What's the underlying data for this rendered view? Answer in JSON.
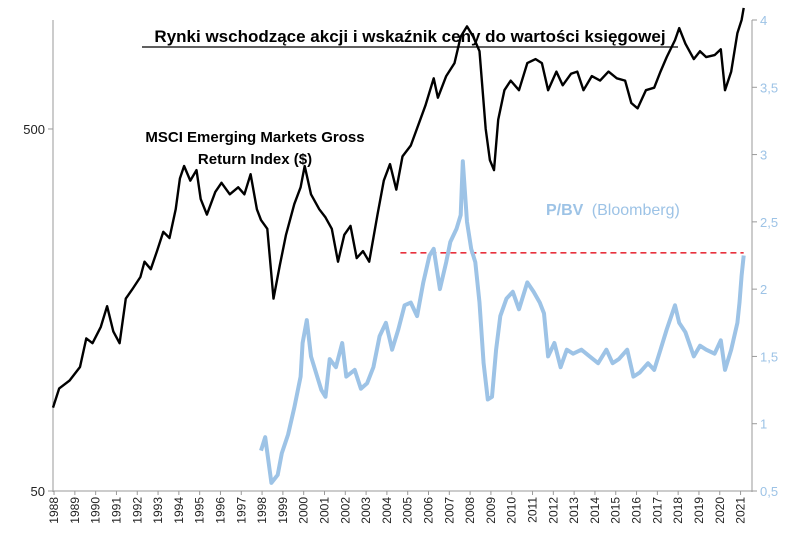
{
  "chart_data": {
    "type": "line",
    "title": "Rynki wschodzące akcji i wskaźnik ceny do wartości księgowej",
    "x_ticks": [
      "1988",
      "1989",
      "1990",
      "1991",
      "1992",
      "1993",
      "1994",
      "1995",
      "1996",
      "1997",
      "1998",
      "1999",
      "2000",
      "2001",
      "2002",
      "2003",
      "2004",
      "2005",
      "2006",
      "2007",
      "2008",
      "2009",
      "2010",
      "2011",
      "2012",
      "2013",
      "2014",
      "2015",
      "2016",
      "2017",
      "2018",
      "2019",
      "2020",
      "2021"
    ],
    "left_axis": {
      "scale": "log",
      "ticks": [
        "50",
        "500"
      ],
      "range": [
        50,
        1000
      ]
    },
    "right_axis": {
      "ticks": [
        "0,5",
        "1",
        "1,5",
        "2",
        "2,5",
        "3",
        "3,5",
        "4"
      ],
      "range": [
        0.5,
        4
      ]
    },
    "series": [
      {
        "name": "MSCI Emerging Markets Gross Return Index ($)",
        "label_line1": "MSCI Emerging Markets Gross",
        "label_line2": "Return Index ($)",
        "axis": "left",
        "color": "#000000",
        "points": [
          [
            1988.0,
            85
          ],
          [
            1988.3,
            96
          ],
          [
            1988.8,
            101
          ],
          [
            1989.3,
            110
          ],
          [
            1989.6,
            132
          ],
          [
            1989.9,
            128
          ],
          [
            1990.3,
            142
          ],
          [
            1990.6,
            162
          ],
          [
            1990.9,
            138
          ],
          [
            1991.2,
            128
          ],
          [
            1991.5,
            170
          ],
          [
            1991.8,
            180
          ],
          [
            1992.2,
            195
          ],
          [
            1992.4,
            215
          ],
          [
            1992.7,
            205
          ],
          [
            1993.0,
            230
          ],
          [
            1993.3,
            260
          ],
          [
            1993.6,
            250
          ],
          [
            1993.9,
            300
          ],
          [
            1994.1,
            365
          ],
          [
            1994.3,
            395
          ],
          [
            1994.6,
            360
          ],
          [
            1994.9,
            385
          ],
          [
            1995.1,
            320
          ],
          [
            1995.4,
            290
          ],
          [
            1995.8,
            335
          ],
          [
            1996.1,
            355
          ],
          [
            1996.5,
            330
          ],
          [
            1996.9,
            345
          ],
          [
            1997.2,
            330
          ],
          [
            1997.5,
            375
          ],
          [
            1997.8,
            300
          ],
          [
            1998.0,
            280
          ],
          [
            1998.3,
            265
          ],
          [
            1998.6,
            170
          ],
          [
            1998.9,
            210
          ],
          [
            1999.2,
            255
          ],
          [
            1999.6,
            310
          ],
          [
            1999.9,
            345
          ],
          [
            2000.1,
            395
          ],
          [
            2000.4,
            330
          ],
          [
            2000.8,
            300
          ],
          [
            2001.1,
            285
          ],
          [
            2001.4,
            265
          ],
          [
            2001.7,
            215
          ],
          [
            2002.0,
            255
          ],
          [
            2002.3,
            270
          ],
          [
            2002.6,
            220
          ],
          [
            2002.9,
            230
          ],
          [
            2003.2,
            215
          ],
          [
            2003.6,
            290
          ],
          [
            2003.9,
            360
          ],
          [
            2004.2,
            400
          ],
          [
            2004.5,
            340
          ],
          [
            2004.8,
            420
          ],
          [
            2005.2,
            450
          ],
          [
            2005.6,
            520
          ],
          [
            2005.9,
            580
          ],
          [
            2006.3,
            690
          ],
          [
            2006.5,
            610
          ],
          [
            2006.9,
            700
          ],
          [
            2007.3,
            760
          ],
          [
            2007.6,
            900
          ],
          [
            2007.9,
            960
          ],
          [
            2008.2,
            900
          ],
          [
            2008.5,
            820
          ],
          [
            2008.8,
            500
          ],
          [
            2009.0,
            410
          ],
          [
            2009.2,
            385
          ],
          [
            2009.4,
            530
          ],
          [
            2009.7,
            640
          ],
          [
            2010.0,
            680
          ],
          [
            2010.4,
            640
          ],
          [
            2010.8,
            760
          ],
          [
            2011.2,
            780
          ],
          [
            2011.5,
            760
          ],
          [
            2011.8,
            640
          ],
          [
            2012.2,
            720
          ],
          [
            2012.5,
            660
          ],
          [
            2012.9,
            710
          ],
          [
            2013.2,
            720
          ],
          [
            2013.5,
            640
          ],
          [
            2013.9,
            700
          ],
          [
            2014.3,
            680
          ],
          [
            2014.7,
            720
          ],
          [
            2015.1,
            690
          ],
          [
            2015.5,
            680
          ],
          [
            2015.8,
            590
          ],
          [
            2016.1,
            570
          ],
          [
            2016.5,
            640
          ],
          [
            2016.9,
            650
          ],
          [
            2017.2,
            720
          ],
          [
            2017.5,
            790
          ],
          [
            2017.9,
            880
          ],
          [
            2018.1,
            950
          ],
          [
            2018.4,
            860
          ],
          [
            2018.8,
            780
          ],
          [
            2019.1,
            820
          ],
          [
            2019.4,
            790
          ],
          [
            2019.8,
            800
          ],
          [
            2020.1,
            830
          ],
          [
            2020.3,
            640
          ],
          [
            2020.6,
            720
          ],
          [
            2020.9,
            920
          ],
          [
            2021.1,
            1000
          ],
          [
            2021.2,
            1080
          ]
        ]
      },
      {
        "name": "P/BV (Bloomberg)",
        "label_main": "P/BV",
        "label_source": "(Bloomberg)",
        "axis": "right",
        "color": "#9dc3e6",
        "points": [
          [
            1998.0,
            0.8
          ],
          [
            1998.2,
            0.9
          ],
          [
            1998.5,
            0.56
          ],
          [
            1998.8,
            0.62
          ],
          [
            1999.0,
            0.78
          ],
          [
            1999.3,
            0.92
          ],
          [
            1999.6,
            1.12
          ],
          [
            1999.9,
            1.35
          ],
          [
            2000.0,
            1.6
          ],
          [
            2000.2,
            1.77
          ],
          [
            2000.4,
            1.5
          ],
          [
            2000.7,
            1.35
          ],
          [
            2000.9,
            1.25
          ],
          [
            2001.1,
            1.2
          ],
          [
            2001.3,
            1.48
          ],
          [
            2001.6,
            1.42
          ],
          [
            2001.9,
            1.6
          ],
          [
            2002.1,
            1.35
          ],
          [
            2002.5,
            1.4
          ],
          [
            2002.8,
            1.26
          ],
          [
            2003.1,
            1.3
          ],
          [
            2003.4,
            1.42
          ],
          [
            2003.7,
            1.65
          ],
          [
            2004.0,
            1.75
          ],
          [
            2004.3,
            1.55
          ],
          [
            2004.6,
            1.7
          ],
          [
            2004.9,
            1.88
          ],
          [
            2005.2,
            1.9
          ],
          [
            2005.5,
            1.8
          ],
          [
            2005.8,
            2.05
          ],
          [
            2006.1,
            2.25
          ],
          [
            2006.3,
            2.3
          ],
          [
            2006.6,
            2.0
          ],
          [
            2006.9,
            2.2
          ],
          [
            2007.1,
            2.35
          ],
          [
            2007.4,
            2.45
          ],
          [
            2007.6,
            2.55
          ],
          [
            2007.7,
            2.95
          ],
          [
            2007.9,
            2.5
          ],
          [
            2008.1,
            2.3
          ],
          [
            2008.3,
            2.2
          ],
          [
            2008.5,
            1.9
          ],
          [
            2008.7,
            1.45
          ],
          [
            2008.9,
            1.18
          ],
          [
            2009.1,
            1.2
          ],
          [
            2009.3,
            1.55
          ],
          [
            2009.5,
            1.8
          ],
          [
            2009.8,
            1.93
          ],
          [
            2010.1,
            1.98
          ],
          [
            2010.4,
            1.85
          ],
          [
            2010.8,
            2.05
          ],
          [
            2011.1,
            1.98
          ],
          [
            2011.4,
            1.9
          ],
          [
            2011.6,
            1.82
          ],
          [
            2011.8,
            1.5
          ],
          [
            2012.1,
            1.6
          ],
          [
            2012.4,
            1.42
          ],
          [
            2012.7,
            1.55
          ],
          [
            2013.0,
            1.52
          ],
          [
            2013.4,
            1.55
          ],
          [
            2013.8,
            1.5
          ],
          [
            2014.2,
            1.45
          ],
          [
            2014.6,
            1.55
          ],
          [
            2014.9,
            1.45
          ],
          [
            2015.2,
            1.48
          ],
          [
            2015.6,
            1.55
          ],
          [
            2015.9,
            1.35
          ],
          [
            2016.2,
            1.38
          ],
          [
            2016.6,
            1.45
          ],
          [
            2016.9,
            1.4
          ],
          [
            2017.2,
            1.55
          ],
          [
            2017.5,
            1.7
          ],
          [
            2017.9,
            1.88
          ],
          [
            2018.1,
            1.75
          ],
          [
            2018.4,
            1.68
          ],
          [
            2018.8,
            1.5
          ],
          [
            2019.1,
            1.58
          ],
          [
            2019.4,
            1.55
          ],
          [
            2019.8,
            1.52
          ],
          [
            2020.1,
            1.62
          ],
          [
            2020.3,
            1.4
          ],
          [
            2020.6,
            1.55
          ],
          [
            2020.9,
            1.75
          ],
          [
            2021.0,
            1.9
          ],
          [
            2021.1,
            2.1
          ],
          [
            2021.2,
            2.25
          ]
        ]
      }
    ],
    "reference_line": {
      "value": 2.27,
      "axis": "right",
      "from": 2004.7,
      "to": 2021.2,
      "color": "#e8323e",
      "style": "dashed"
    }
  }
}
